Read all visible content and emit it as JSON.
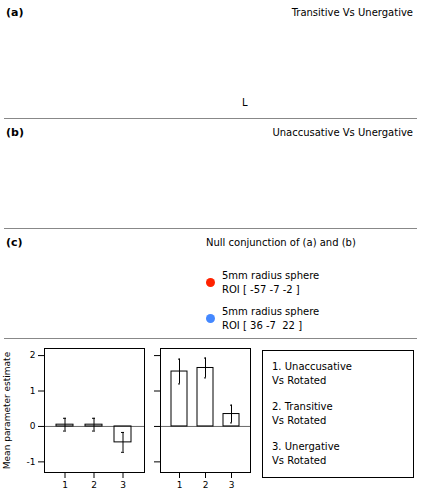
{
  "chart_data": [
    {
      "type": "bar",
      "ylabel": "Mean parameter estimate",
      "categories": [
        "1",
        "2",
        "3"
      ],
      "values": [
        0.05,
        0.05,
        -0.45
      ],
      "errors": [
        0.18,
        0.18,
        0.28
      ],
      "ylim": [
        -1.3,
        2.2
      ],
      "yticks": [
        -1,
        0,
        1,
        2
      ],
      "annotations": [
        {
          "text": "(a)"
        },
        {
          "text": "Transitive Vs Unergative"
        },
        {
          "text": "L"
        },
        {
          "text": "(b)"
        },
        {
          "text": "Unaccusative Vs Unergative"
        },
        {
          "text": "(c)"
        },
        {
          "text": "Null conjunction of (a) and (b)"
        },
        {
          "text": "5mm radius sphere\nROI [ -57 -7 -2 ]",
          "color": "#ff2200"
        },
        {
          "text": "5mm radius sphere\nROI [ 36 -7  22 ]",
          "color": "#4488ff"
        },
        {
          "text": "1. Unaccusative\nVs Rotated"
        },
        {
          "text": "2. Transitive\nVs Rotated"
        },
        {
          "text": "3. Unergative\nVs Rotated"
        }
      ]
    },
    {
      "type": "bar",
      "categories": [
        "1",
        "2",
        "3"
      ],
      "values": [
        1.55,
        1.65,
        0.35
      ],
      "errors": [
        0.35,
        0.28,
        0.25
      ],
      "ylim": [
        -1.3,
        2.2
      ],
      "yticks": [
        -1,
        0,
        1,
        2
      ],
      "tick_labels": "x"
    }
  ]
}
